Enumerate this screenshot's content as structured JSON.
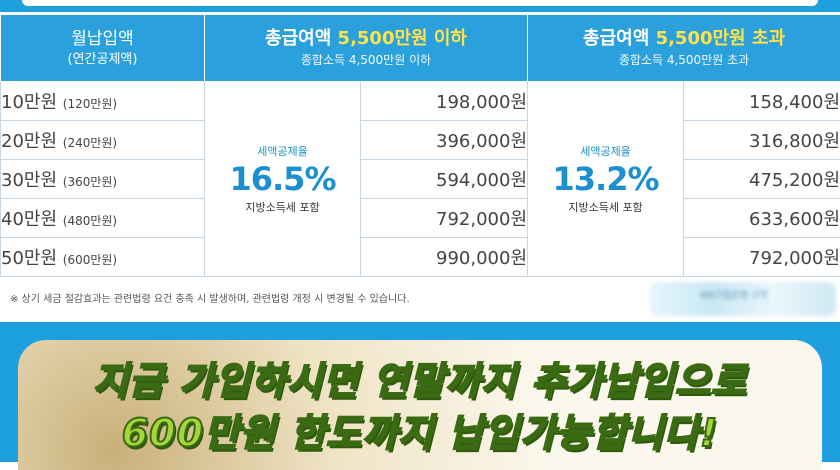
{
  "header": {
    "col1_line1": "월납입액",
    "col1_line2": "(연간공제액)",
    "group1_title_prefix": "총급여액",
    "group1_title_highlight": "5,500만원 이하",
    "group1_sub": "종합소득 4,500만원 이하",
    "group2_title_prefix": "총급여액",
    "group2_title_highlight": "5,500만원 초과",
    "group2_sub": "종합소득 4,500만원 초과"
  },
  "rows": [
    {
      "amount": "10만원",
      "annual": "(120만원)",
      "refund_low": "198,000원",
      "refund_high": "158,400원"
    },
    {
      "amount": "20만원",
      "annual": "(240만원)",
      "refund_low": "396,000원",
      "refund_high": "316,800원"
    },
    {
      "amount": "30만원",
      "annual": "(360만원)",
      "refund_low": "594,000원",
      "refund_high": "475,200원"
    },
    {
      "amount": "40만원",
      "annual": "(480만원)",
      "refund_low": "792,000원",
      "refund_high": "633,600원"
    },
    {
      "amount": "50만원",
      "annual": "(600만원)",
      "refund_low": "990,000원",
      "refund_high": "792,000원"
    }
  ],
  "rate_low": {
    "label": "세액공제율",
    "value": "16.5%",
    "sub": "지방소득세 포함"
  },
  "rate_high": {
    "label": "세액공제율",
    "value": "13.2%",
    "sub": "지방소득세 포함"
  },
  "note": "※ 상기 세금 절감효과는 관련법령 요건 충족 시 발생하며, 관련법령 개정 시 변경될 수 있습니다.",
  "logo_text": "IBK기업은행 고객",
  "promo": {
    "line1": "지금 가입하시면 연말까지 추가납입으로",
    "line2": "600만원 한도까지 납입가능합니다!"
  },
  "colors": {
    "accent": "#1ea0de",
    "highlight": "#ffe14a",
    "rate": "#1c8fd1",
    "promo_text": "#a6d53a"
  }
}
